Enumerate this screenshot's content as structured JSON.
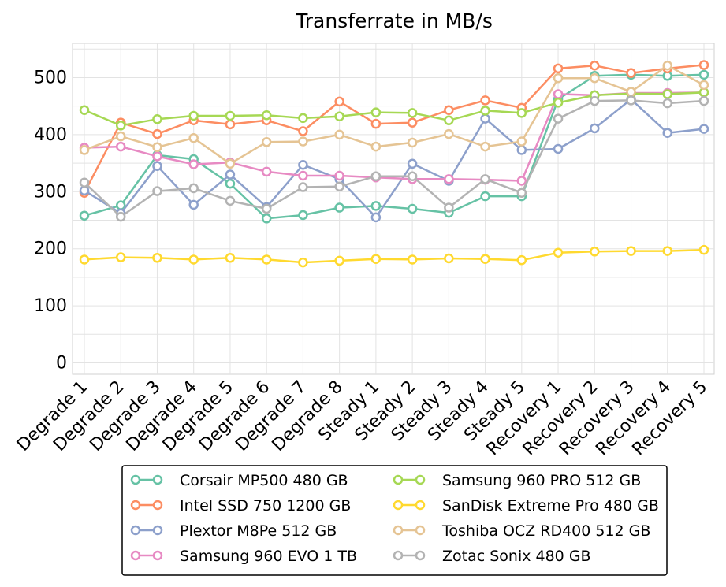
{
  "chart_data": {
    "type": "line",
    "title": "Transferrate in MB/s",
    "xlabel": "",
    "ylabel": "",
    "ylim": [
      -20,
      560
    ],
    "yticks": [
      0,
      100,
      200,
      300,
      400,
      500
    ],
    "grid": true,
    "legend_position": "bottom",
    "categories": [
      "Degrade 1",
      "Degrade 2",
      "Degrade 3",
      "Degrade 4",
      "Degrade 5",
      "Degrade 6",
      "Degrade 7",
      "Degrade 8",
      "Steady 1",
      "Steady 2",
      "Steady 3",
      "Steady 4",
      "Steady 5",
      "Recovery 1",
      "Recovery 2",
      "Recovery 3",
      "Recovery 4",
      "Recovery 5"
    ],
    "series": [
      {
        "name": "Corsair MP500 480 GB",
        "color": "#66c2a5",
        "values": [
          258,
          276,
          364,
          357,
          314,
          253,
          259,
          272,
          275,
          270,
          263,
          292,
          292,
          462,
          503,
          505,
          503,
          505
        ]
      },
      {
        "name": "Intel SSD 750 1200 GB",
        "color": "#fc8d62",
        "values": [
          298,
          421,
          401,
          425,
          418,
          425,
          406,
          458,
          419,
          421,
          443,
          460,
          447,
          516,
          521,
          508,
          516,
          522
        ]
      },
      {
        "name": "Plextor M8Pe 512 GB",
        "color": "#8da0cb",
        "values": [
          302,
          262,
          345,
          277,
          330,
          273,
          347,
          322,
          255,
          349,
          319,
          428,
          373,
          375,
          411,
          462,
          403,
          410
        ]
      },
      {
        "name": "Samsung 960 EVO 1 TB",
        "color": "#e78ac3",
        "values": [
          377,
          379,
          362,
          348,
          351,
          335,
          328,
          328,
          325,
          322,
          322,
          321,
          319,
          471,
          469,
          473,
          473,
          474
        ]
      },
      {
        "name": "Samsung 960 PRO 512 GB",
        "color": "#a6d854",
        "values": [
          443,
          416,
          427,
          433,
          433,
          434,
          429,
          432,
          439,
          438,
          425,
          442,
          438,
          456,
          469,
          472,
          471,
          474
        ]
      },
      {
        "name": "SanDisk Extreme Pro 480 GB",
        "color": "#ffd92f",
        "values": [
          181,
          185,
          184,
          181,
          184,
          181,
          176,
          179,
          182,
          181,
          183,
          182,
          180,
          193,
          195,
          196,
          196,
          198
        ]
      },
      {
        "name": "Toshiba OCZ RD400 512 GB",
        "color": "#e5c494",
        "values": [
          373,
          397,
          378,
          394,
          349,
          387,
          388,
          400,
          379,
          386,
          401,
          379,
          388,
          499,
          499,
          475,
          521,
          487
        ]
      },
      {
        "name": "Zotac Sonix 480 GB",
        "color": "#b3b3b3",
        "values": [
          316,
          256,
          301,
          306,
          284,
          270,
          308,
          309,
          327,
          327,
          272,
          322,
          298,
          428,
          459,
          460,
          455,
          459
        ]
      }
    ]
  }
}
